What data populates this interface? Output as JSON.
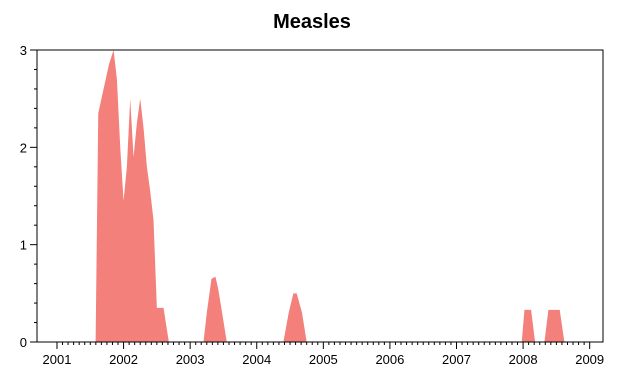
{
  "chart_data": {
    "type": "area",
    "title": "Measles",
    "xlabel": "",
    "ylabel": "",
    "xlim": [
      2000.7,
      2009.2
    ],
    "ylim": [
      0,
      3
    ],
    "xticks": [
      2001,
      2002,
      2003,
      2004,
      2005,
      2006,
      2007,
      2008,
      2009
    ],
    "xtick_labels": [
      "2001",
      "2002",
      "2003",
      "2004",
      "2005",
      "2006",
      "2007",
      "2008",
      "2009"
    ],
    "yticks": [
      0,
      1,
      2,
      3
    ],
    "ytick_labels": [
      "0",
      "1",
      "2",
      "3"
    ],
    "grid": false,
    "fill_color": "#f4807b",
    "x": [
      2001.58,
      2001.62,
      2001.7,
      2001.78,
      2001.85,
      2001.9,
      2001.95,
      2002.0,
      2002.05,
      2002.1,
      2002.15,
      2002.2,
      2002.25,
      2002.3,
      2002.35,
      2002.4,
      2002.45,
      2002.5,
      2002.55,
      2002.6,
      2002.68,
      2002.72,
      2003.2,
      2003.25,
      2003.32,
      2003.38,
      2003.42,
      2003.48,
      2003.55,
      2003.58,
      2004.4,
      2004.48,
      2004.55,
      2004.6,
      2004.68,
      2004.75,
      2004.8,
      2007.98,
      2008.02,
      2008.12,
      2008.18,
      2008.32,
      2008.38,
      2008.55,
      2008.62
    ],
    "y": [
      0,
      2.35,
      2.6,
      2.85,
      3.0,
      2.7,
      2.0,
      1.45,
      1.8,
      2.5,
      1.9,
      2.25,
      2.5,
      2.2,
      1.8,
      1.55,
      1.25,
      0.35,
      0.35,
      0.35,
      0,
      0,
      0,
      0.3,
      0.65,
      0.67,
      0.55,
      0.3,
      0,
      0,
      0,
      0.3,
      0.5,
      0.5,
      0.3,
      0,
      0,
      0,
      0.33,
      0.33,
      0,
      0,
      0.33,
      0.33,
      0
    ]
  }
}
